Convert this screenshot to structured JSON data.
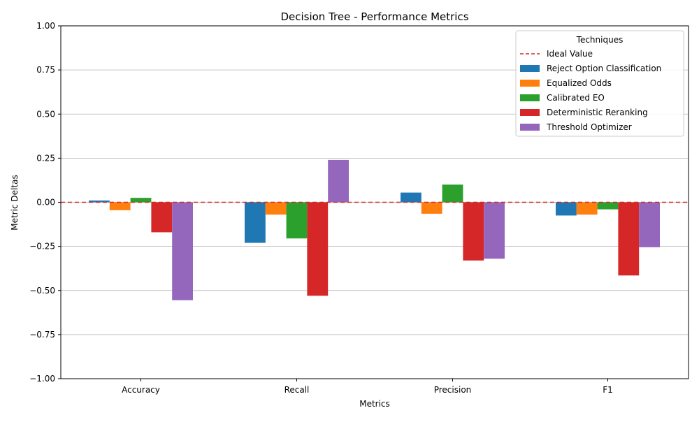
{
  "chart_data": {
    "type": "bar",
    "title": "Decision Tree - Performance Metrics",
    "xlabel": "Metrics",
    "ylabel": "Metric Deltas",
    "categories": [
      "Accuracy",
      "Recall",
      "Precision",
      "F1"
    ],
    "ylim": [
      -1.0,
      1.0
    ],
    "yticks": [
      "−1.00",
      "−0.75",
      "−0.50",
      "−0.25",
      "0.00",
      "0.25",
      "0.50",
      "0.75",
      "1.00"
    ],
    "ytick_values": [
      -1.0,
      -0.75,
      -0.5,
      -0.25,
      0.0,
      0.25,
      0.5,
      0.75,
      1.0
    ],
    "grid": "y",
    "legend": {
      "title": "Techniques",
      "placement": "top-right",
      "reference_line_label": "Ideal Value"
    },
    "reference_line": {
      "value": 0.0,
      "color": "#d62728",
      "style": "dashed"
    },
    "series": [
      {
        "name": "Reject Option Classification",
        "color": "#1f77b4",
        "values": [
          0.01,
          -0.23,
          0.055,
          -0.075
        ]
      },
      {
        "name": "Equalized Odds",
        "color": "#ff7f0e",
        "values": [
          -0.045,
          -0.07,
          -0.065,
          -0.07
        ]
      },
      {
        "name": "Calibrated EO",
        "color": "#2ca02c",
        "values": [
          0.025,
          -0.205,
          0.1,
          -0.04
        ]
      },
      {
        "name": "Deterministic Reranking",
        "color": "#d62728",
        "values": [
          -0.17,
          -0.53,
          -0.33,
          -0.415
        ]
      },
      {
        "name": "Threshold Optimizer",
        "color": "#9467bd",
        "values": [
          -0.555,
          0.24,
          -0.32,
          -0.255
        ]
      }
    ]
  }
}
